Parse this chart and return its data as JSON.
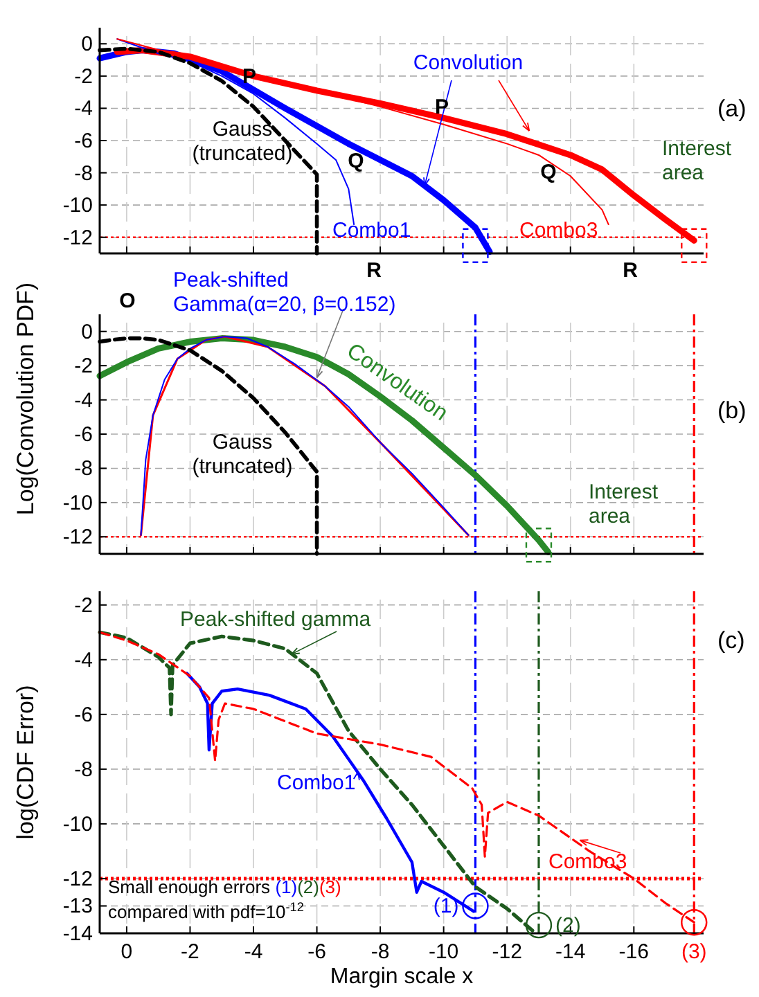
{
  "chart_data": [
    {
      "type": "line",
      "xlim": [
        0.85,
        -18.2
      ],
      "ylim": [
        -13,
        1
      ],
      "xticks": [
        0,
        -2,
        -4,
        -6,
        -8,
        -10,
        -12,
        -14,
        -16
      ],
      "yticks": [
        0,
        -2,
        -4,
        -6,
        -8,
        -10,
        -12
      ],
      "tick_labels": "y",
      "grid": true,
      "series": [
        {
          "color": "#0000ff",
          "x": [
            0.85,
            0,
            -0.5,
            -1.5,
            -3,
            -5,
            -7,
            -9,
            -10,
            -11,
            -11.45
          ],
          "values": [
            -0.9,
            -0.5,
            -0.4,
            -0.6,
            -1.7,
            -4,
            -6.2,
            -8.2,
            -9.7,
            -11.4,
            -12.9
          ]
        },
        {
          "color": "#ff0000",
          "x": [
            0.3,
            -0.5,
            -2,
            -4,
            -6,
            -8,
            -10,
            -12,
            -14,
            -15,
            -16,
            -17,
            -17.9
          ],
          "values": [
            -0.5,
            -0.4,
            -0.8,
            -2,
            -2.9,
            -3.7,
            -4.6,
            -5.6,
            -6.9,
            -7.8,
            -9.4,
            -10.9,
            -12.2
          ]
        },
        {
          "name": "Combo1",
          "color": "#0000ff",
          "x": [
            0.3,
            -1,
            -2,
            -3,
            -4,
            -5,
            -6,
            -6.6,
            -7,
            -7.17
          ],
          "values": [
            0.3,
            -0.6,
            -1.1,
            -2,
            -3.1,
            -4.6,
            -6.2,
            -7.2,
            -9,
            -11.2
          ]
        },
        {
          "name": "Combo3",
          "color": "#ff0000",
          "x": [
            0.3,
            -2,
            -4,
            -6,
            -8,
            -10,
            -12,
            -13,
            -14,
            -15,
            -15.2
          ],
          "values": [
            0.3,
            -0.9,
            -1.9,
            -2.9,
            -3.9,
            -5,
            -6.2,
            -6.9,
            -8.2,
            -10.3,
            -11.2
          ]
        },
        {
          "name": "Gauss (truncated)",
          "color": "#000000",
          "line_style": "dashed",
          "x": [
            0.85,
            0,
            -1,
            -2,
            -3,
            -4,
            -5,
            -6,
            -6
          ],
          "values": [
            -0.4,
            -0.3,
            -0.5,
            -1.2,
            -2.3,
            -3.9,
            -6,
            -8.1,
            -13
          ]
        }
      ],
      "ref_lines": [
        {
          "axis": "y",
          "value": -12,
          "color": "#ff0000",
          "line_style": "dotted"
        }
      ],
      "annotations": [
        {
          "text": "Convolution",
          "x": -9.4,
          "y": -8.8
        },
        "P",
        "Q",
        "R",
        "P",
        "Q",
        "R",
        "Interest area",
        "(a)"
      ]
    },
    {
      "type": "line",
      "xlim": [
        0.85,
        -18.2
      ],
      "ylim": [
        -13,
        1
      ],
      "xticks": [
        0,
        -2,
        -4,
        -6,
        -8,
        -10,
        -12,
        -14,
        -16
      ],
      "yticks": [
        0,
        -2,
        -4,
        -6,
        -8,
        -10,
        -12
      ],
      "tick_labels": "y",
      "grid": true,
      "ylabel": "Log(Convolution PDF)",
      "series": [
        {
          "name": "Convolution",
          "color": "#2a8a2a",
          "x": [
            0.85,
            0,
            -1,
            -2,
            -3,
            -4,
            -5,
            -6,
            -7,
            -8,
            -9,
            -10,
            -11,
            -12,
            -13,
            -13.3
          ],
          "values": [
            -2.6,
            -1.8,
            -1,
            -0.6,
            -0.4,
            -0.5,
            -0.9,
            -1.5,
            -2.5,
            -3.8,
            -5.2,
            -6.8,
            -8.4,
            -10.2,
            -12.2,
            -12.9
          ]
        },
        {
          "color": "#ff0000",
          "x": [
            -0.45,
            -0.83,
            -1.6,
            -2.5,
            -3.1,
            -4.45,
            -6.26,
            -8.06,
            -10.78
          ],
          "values": [
            -11.9,
            -4.9,
            -1.6,
            -0.5,
            -0.3,
            -0.9,
            -3.2,
            -6.6,
            -11.9
          ]
        },
        {
          "name": "Peak-shifted Gamma(α=20, β=0.152)",
          "color": "#0000ff",
          "x": [
            -0.45,
            -0.6,
            -0.83,
            -1.2,
            -1.6,
            -2,
            -2.5,
            -3.1,
            -3.8,
            -4.45,
            -5.3,
            -6.26,
            -7,
            -8.06,
            -9,
            -10,
            -10.78
          ],
          "values": [
            -11.9,
            -7.5,
            -4.9,
            -2.8,
            -1.6,
            -1,
            -0.5,
            -0.3,
            -0.4,
            -0.9,
            -1.9,
            -3.2,
            -4.4,
            -6.6,
            -8.3,
            -10.3,
            -11.9
          ]
        },
        {
          "name": "Gauss (truncated)",
          "color": "#000000",
          "line_style": "dashed",
          "x": [
            0.85,
            0.5,
            0,
            -0.5,
            -1,
            -2,
            -3,
            -4,
            -5,
            -6,
            -6
          ],
          "values": [
            -0.6,
            -0.5,
            -0.4,
            -0.4,
            -0.5,
            -1.1,
            -2.3,
            -3.9,
            -5.9,
            -8.2,
            -13
          ]
        }
      ],
      "ref_lines": [
        {
          "axis": "y",
          "value": -12,
          "color": "#ff0000",
          "line_style": "dotted"
        },
        {
          "axis": "x",
          "value": -11,
          "color": "#0000ff",
          "line_style": "dashed"
        },
        {
          "axis": "x",
          "value": -17.9,
          "color": "#ff0000",
          "line_style": "dashed"
        }
      ],
      "annotations": [
        "O",
        "Interest area",
        "(b)"
      ]
    },
    {
      "type": "line",
      "xlim": [
        0.85,
        -18.2
      ],
      "ylim": [
        -14,
        -1.5
      ],
      "xticks": [
        0,
        -2,
        -4,
        -6,
        -8,
        -10,
        -12,
        -14,
        -16
      ],
      "yticks": [
        -2,
        -4,
        -6,
        -8,
        -10,
        -12,
        -13,
        -14
      ],
      "grid": true,
      "xlabel": "Margin scale x",
      "ylabel": "log(CDF  Error)",
      "series": [
        {
          "color": "#1e5a1e",
          "line_style": "dashed",
          "x": [
            0.85,
            0,
            -1,
            -1.35,
            -1.4,
            -1.45,
            -2,
            -3,
            -4,
            -5,
            -6,
            -7,
            -8,
            -9,
            -10,
            -11,
            -12,
            -12.9
          ],
          "values": [
            -3,
            -3.2,
            -3.9,
            -4.3,
            -6,
            -4.2,
            -3.4,
            -3.15,
            -3.3,
            -3.6,
            -4.5,
            -6.6,
            -8,
            -9.3,
            -10.8,
            -12.3,
            -13.1,
            -14
          ]
        },
        {
          "color": "#0000ff",
          "x": [
            -1.9,
            -2.3,
            -2.55,
            -2.6,
            -2.7,
            -3,
            -3.5,
            -4.5,
            -5.65,
            -6.5,
            -7.46,
            -8.2,
            -9,
            -9.15,
            -9.3,
            -10,
            -10.95
          ],
          "values": [
            -4.5,
            -5,
            -5.6,
            -7.3,
            -5.6,
            -5.15,
            -5.07,
            -5.3,
            -5.8,
            -6.8,
            -8.4,
            -9.8,
            -11.4,
            -12.5,
            -12.1,
            -12.5,
            -13.2
          ]
        },
        {
          "color": "#ff0000",
          "line_style": "dashed",
          "x": [
            0.85,
            0,
            -1,
            -2,
            -2.6,
            -2.79,
            -2.9,
            -3.1,
            -4,
            -6,
            -8,
            -9.6,
            -10.9,
            -11.2,
            -11.3,
            -11.4,
            -12,
            -13,
            -14.6,
            -16,
            -17,
            -17.9
          ],
          "values": [
            -3,
            -3.3,
            -3.8,
            -4.6,
            -5.4,
            -7.7,
            -6.2,
            -5.6,
            -5.8,
            -6.7,
            -7.1,
            -7.55,
            -8.7,
            -9.3,
            -11.2,
            -9.6,
            -9.2,
            -9.7,
            -11,
            -12,
            -12.9,
            -13.6
          ]
        }
      ],
      "ref_lines": [
        {
          "axis": "y",
          "value": -12,
          "color": "#ff0000",
          "line_style": "dotted"
        },
        {
          "axis": "x",
          "value": -11,
          "color": "#0000ff",
          "line_style": "dashed"
        },
        {
          "axis": "x",
          "value": -13,
          "color": "#1e5a1e",
          "line_style": "dashed"
        },
        {
          "axis": "x",
          "value": -17.9,
          "color": "#ff0000",
          "line_style": "dashed"
        }
      ],
      "annotations": [
        "Small enough errors",
        "(1)",
        "(2)",
        "(3)",
        "compared with pdf=10$^{-12}$",
        {
          "text": "(1)",
          "x": -11,
          "y": -13
        },
        {
          "text": "(2)",
          "x": -13,
          "y": -13.7
        },
        {
          "text": "(3)",
          "x": -17.9,
          "y": -13.6
        },
        "(c)",
        {
          "text": "Peak-shifted gamma",
          "x": -5.2,
          "y": -3.8
        },
        {
          "text": "Combo1",
          "x": -7.3,
          "y": -8.1
        },
        {
          "text": "Combo3",
          "x": -14.3,
          "y": -10.8
        }
      ]
    }
  ]
}
